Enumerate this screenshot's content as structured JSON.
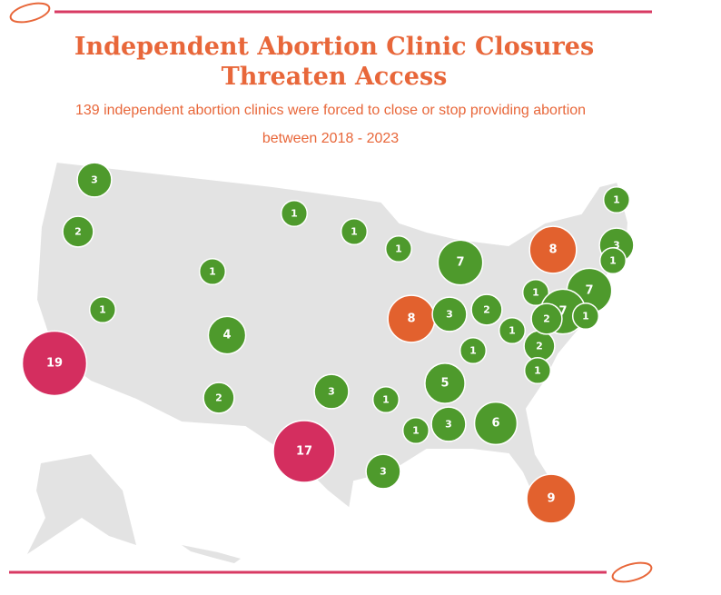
{
  "header": {
    "title": [
      "Independent Abortion Clinic Closures",
      "Threaten Access"
    ],
    "subtitle": [
      "139 independent abortion clinics were forced to close or stop providing abortion",
      "between 2018 - 2023"
    ]
  },
  "bubbles": [
    {
      "value": 3,
      "color": "#4e9a2c"
    },
    {
      "value": 2,
      "color": "#4e9a2c"
    },
    {
      "value": 19,
      "color": "#d42e5f"
    },
    {
      "value": 1,
      "color": "#4e9a2c"
    },
    {
      "value": 1,
      "color": "#4e9a2c"
    },
    {
      "value": 4,
      "color": "#4e9a2c"
    },
    {
      "value": 2,
      "color": "#4e9a2c"
    },
    {
      "value": 1,
      "color": "#4e9a2c"
    },
    {
      "value": 1,
      "color": "#4e9a2c"
    },
    {
      "value": 1,
      "color": "#4e9a2c"
    },
    {
      "value": 7,
      "color": "#4e9a2c"
    },
    {
      "value": 8,
      "color": "#e2612e"
    },
    {
      "value": 3,
      "color": "#4e9a2c"
    },
    {
      "value": 2,
      "color": "#4e9a2c"
    },
    {
      "value": 3,
      "color": "#4e9a2c"
    },
    {
      "value": 1,
      "color": "#4e9a2c"
    },
    {
      "value": 17,
      "color": "#d42e5f"
    },
    {
      "value": 3,
      "color": "#4e9a2c"
    },
    {
      "value": 1,
      "color": "#4e9a2c"
    },
    {
      "value": 3,
      "color": "#4e9a2c"
    },
    {
      "value": 5,
      "color": "#4e9a2c"
    },
    {
      "value": 1,
      "color": "#4e9a2c"
    },
    {
      "value": 1,
      "color": "#4e9a2c"
    },
    {
      "value": 2,
      "color": "#4e9a2c"
    },
    {
      "value": 1,
      "color": "#4e9a2c"
    },
    {
      "value": 6,
      "color": "#4e9a2c"
    },
    {
      "value": 9,
      "color": "#e2612e"
    },
    {
      "value": 8,
      "color": "#e2612e"
    },
    {
      "value": 1,
      "color": "#4e9a2c"
    },
    {
      "value": 7,
      "color": "#4e9a2c"
    },
    {
      "value": 7,
      "color": "#4e9a2c"
    },
    {
      "value": 2,
      "color": "#4e9a2c"
    },
    {
      "value": 1,
      "color": "#4e9a2c"
    },
    {
      "value": 1,
      "color": "#4e9a2c"
    },
    {
      "value": 3,
      "color": "#4e9a2c"
    },
    {
      "value": 1,
      "color": "#4e9a2c"
    }
  ]
}
